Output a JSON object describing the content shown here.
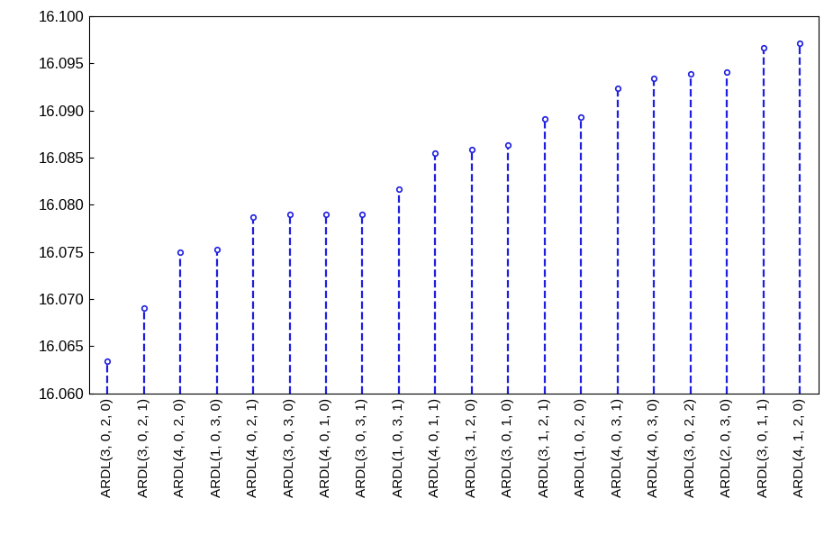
{
  "chart_data": {
    "type": "stem",
    "categories": [
      "ARDL(3, 0, 2, 0)",
      "ARDL(3, 0, 2, 1)",
      "ARDL(4, 0, 2, 0)",
      "ARDL(1, 0, 3, 0)",
      "ARDL(4, 0, 2, 1)",
      "ARDL(3, 0, 3, 0)",
      "ARDL(4, 0, 1, 0)",
      "ARDL(3, 0, 3, 1)",
      "ARDL(1, 0, 3, 1)",
      "ARDL(4, 0, 1, 1)",
      "ARDL(3, 1, 2, 0)",
      "ARDL(3, 0, 1, 0)",
      "ARDL(3, 1, 2, 1)",
      "ARDL(1, 0, 2, 0)",
      "ARDL(4, 0, 3, 1)",
      "ARDL(4, 0, 3, 0)",
      "ARDL(3, 0, 2, 2)",
      "ARDL(2, 0, 3, 0)",
      "ARDL(3, 0, 1, 1)",
      "ARDL(4, 1, 2, 0)"
    ],
    "values": [
      16.0634,
      16.069,
      16.075,
      16.0752,
      16.0787,
      16.079,
      16.079,
      16.079,
      16.0816,
      16.0855,
      16.0858,
      16.0863,
      16.0891,
      16.0893,
      16.0923,
      16.0934,
      16.0939,
      16.0941,
      16.0966,
      16.0971
    ],
    "color": "#1f1fe0",
    "line_style": "dashed",
    "marker": "circle",
    "grid": false,
    "ylim": [
      16.06,
      16.1
    ],
    "yticks": [
      {
        "value": 16.06,
        "label": "16.060"
      },
      {
        "value": 16.065,
        "label": "16.065"
      },
      {
        "value": 16.07,
        "label": "16.070"
      },
      {
        "value": 16.075,
        "label": "16.075"
      },
      {
        "value": 16.08,
        "label": "16.080"
      },
      {
        "value": 16.085,
        "label": "16.085"
      },
      {
        "value": 16.09,
        "label": "16.090"
      },
      {
        "value": 16.095,
        "label": "16.095"
      },
      {
        "value": 16.1,
        "label": "16.100"
      }
    ]
  }
}
